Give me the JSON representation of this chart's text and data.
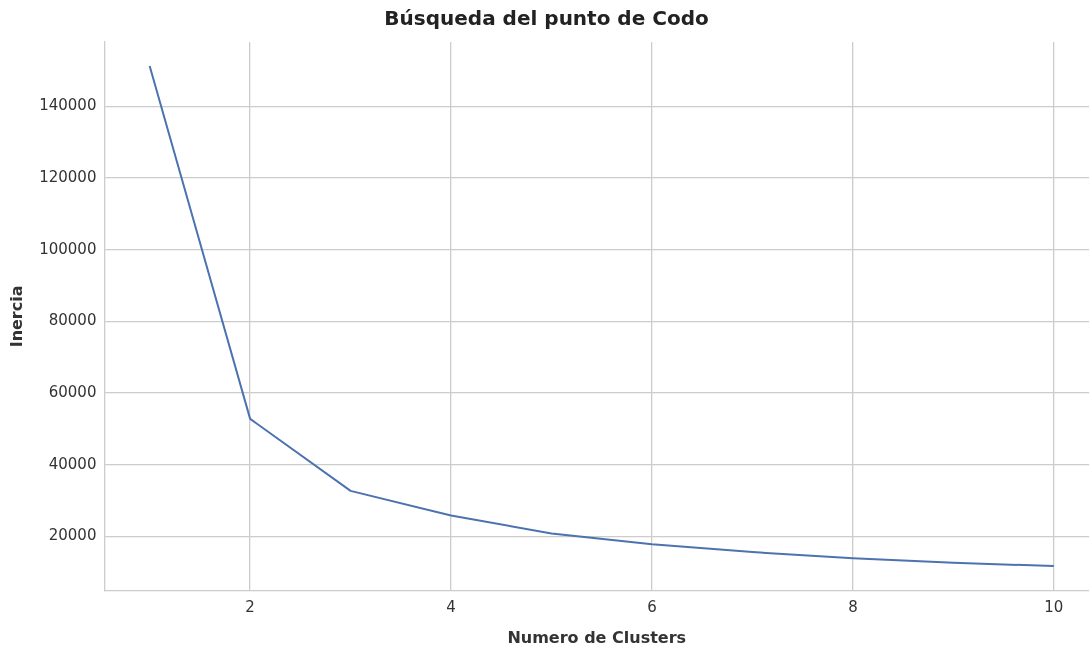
{
  "chart_data": {
    "type": "line",
    "title": "Búsqueda del punto de Codo",
    "xlabel": "Numero de Clusters",
    "ylabel": "Inercia",
    "x": [
      1,
      2,
      3,
      4,
      5,
      6,
      7,
      8,
      9,
      10
    ],
    "series": [
      {
        "color": "#4c72b0",
        "values": [
          151300,
          52800,
          32700,
          25800,
          20800,
          17800,
          15600,
          13900,
          12600,
          11700
        ]
      }
    ],
    "xlim": [
      0.55,
      10.35
    ],
    "xticks": [
      2,
      4,
      6,
      8,
      10
    ],
    "ylim": [
      4800,
      158000
    ],
    "yticks": [
      20000,
      40000,
      60000,
      80000,
      100000,
      120000,
      140000
    ],
    "grid": true,
    "marker": "none",
    "line_style": "solid"
  }
}
